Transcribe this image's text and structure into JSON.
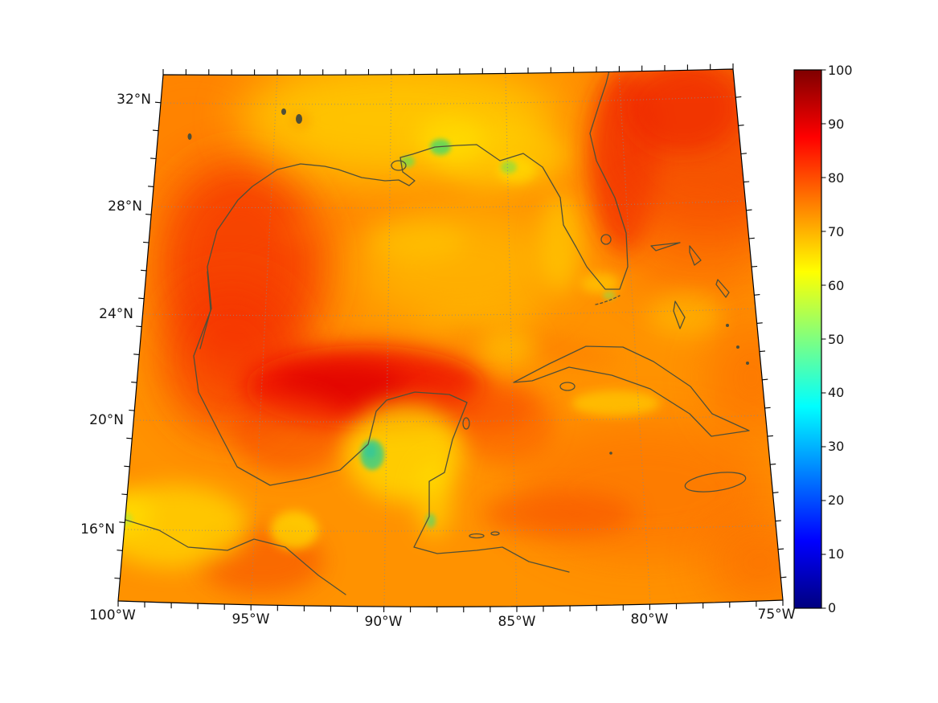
{
  "chart_data": {
    "type": "heatmap",
    "title": "",
    "x_axis": {
      "label": "",
      "ticks": [
        "100°W",
        "95°W",
        "90°W",
        "85°W",
        "80°W",
        "75°W"
      ]
    },
    "y_axis": {
      "label": "",
      "ticks": [
        "32°N",
        "28°N",
        "24°N",
        "20°N",
        "16°N"
      ]
    },
    "map_extent": {
      "lon_west": -100,
      "lon_east": -75,
      "lat_south": 14,
      "lat_north": 33
    },
    "graticule": {
      "visible": true,
      "style": "dotted",
      "lon_step_deg": 5,
      "lat_step_deg": 4
    },
    "colorbar": {
      "min": 0,
      "max": 100,
      "ticks": [
        "0",
        "10",
        "20",
        "30",
        "40",
        "50",
        "60",
        "70",
        "80",
        "90",
        "100"
      ],
      "colormap": "jet",
      "stops": [
        {
          "v": 0,
          "c": "#00007f"
        },
        {
          "v": 12.5,
          "c": "#0000ff"
        },
        {
          "v": 37.5,
          "c": "#00ffff"
        },
        {
          "v": 62.5,
          "c": "#ffff00"
        },
        {
          "v": 87.5,
          "c": "#ff0000"
        },
        {
          "v": 100,
          "c": "#7f0000"
        }
      ]
    },
    "field": {
      "description": "Values mostly 65-90 over the domain: reds (80-90) over the western Gulf of Mexico, Bay of Campeche, Florida Atlantic coast and the northeast corner; yellows (60-68) along the northern Gulf coast, central Gulf, Yucatan and the Pacific coast; small green/cyan minima (40-55) at coastal spots near the Mississippi delta, western Yucatan and Belize.",
      "approx_grid": {
        "lons": [
          -100,
          -95,
          -90,
          -85,
          -80,
          -75
        ],
        "lats": [
          32,
          28,
          24,
          20,
          16
        ],
        "values": [
          [
            74,
            66,
            64,
            68,
            82,
            80
          ],
          [
            76,
            82,
            72,
            70,
            78,
            80
          ],
          [
            77,
            82,
            72,
            72,
            74,
            76
          ],
          [
            76,
            85,
            86,
            74,
            72,
            76
          ],
          [
            64,
            70,
            66,
            72,
            77,
            78
          ]
        ]
      }
    },
    "land_features": [
      "Gulf of Mexico coastline",
      "Florida",
      "Yucatan Peninsula",
      "Cuba",
      "Jamaica",
      "Bahamas",
      "Mississippi River delta"
    ]
  }
}
